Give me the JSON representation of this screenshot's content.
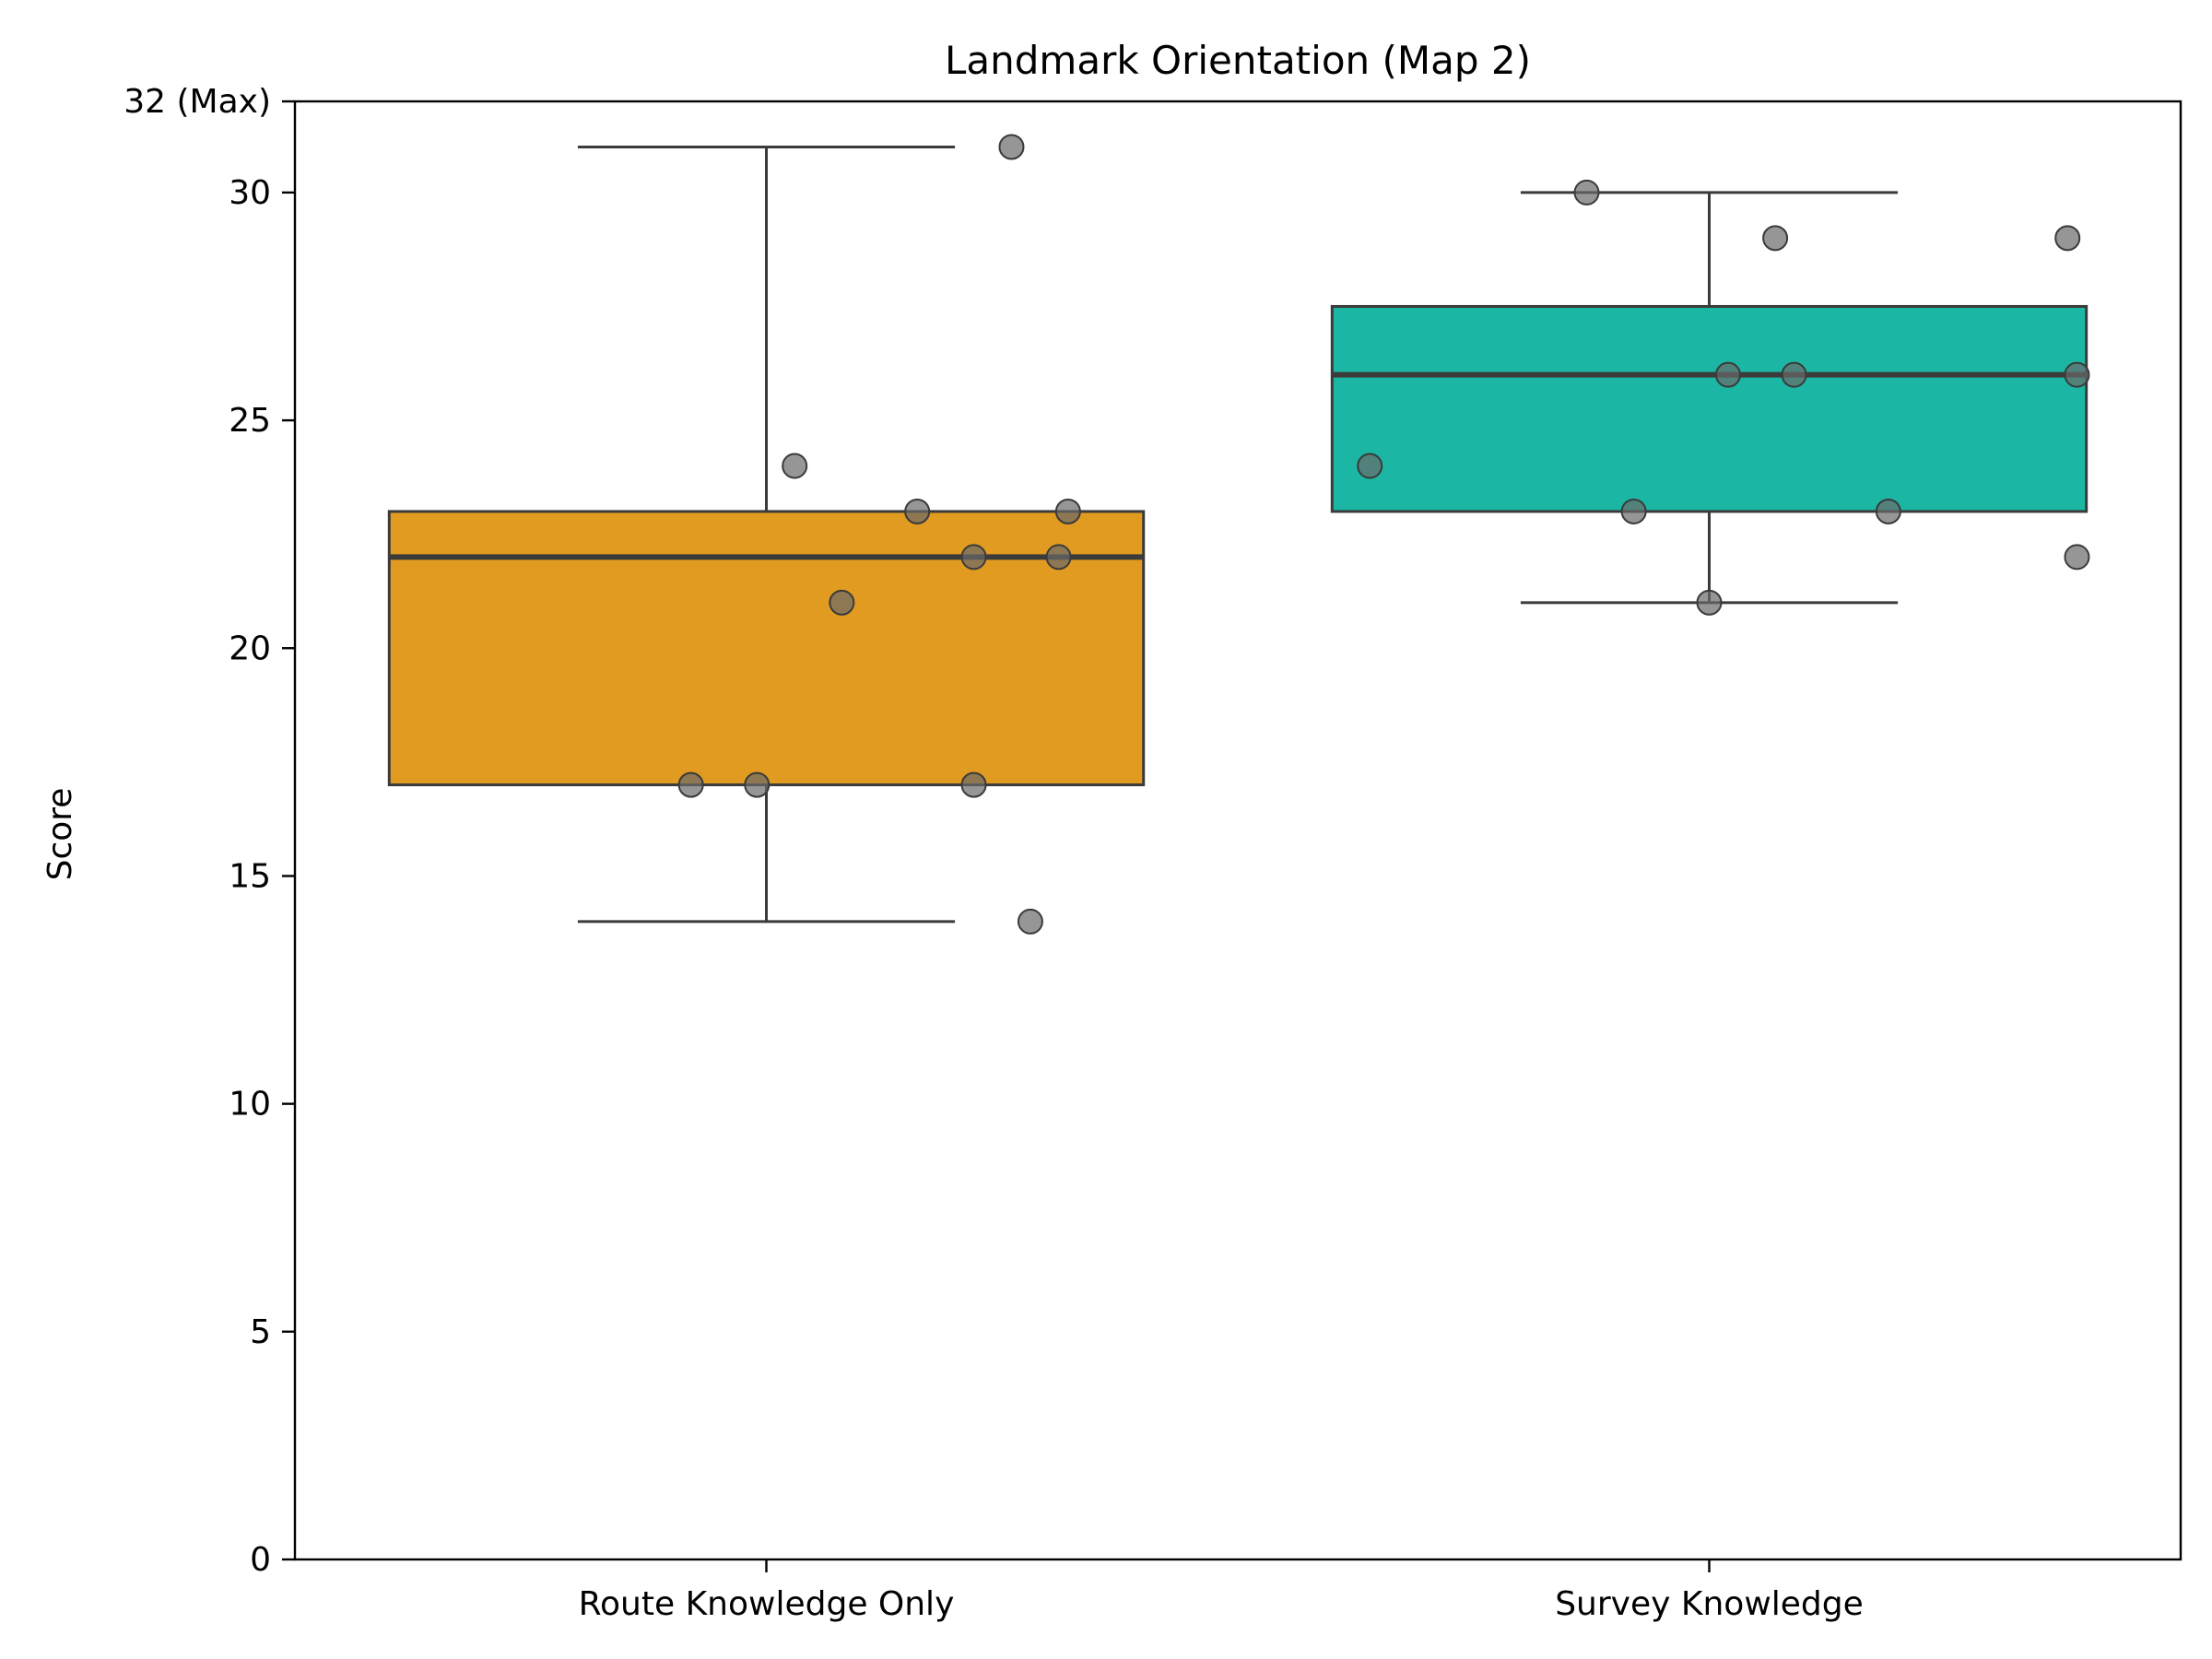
{
  "chart_data": {
    "type": "box",
    "title": "Landmark Orientation (Map 2)",
    "xlabel": "",
    "ylabel": "Score",
    "ylim": [
      0,
      32
    ],
    "yticks": [
      0,
      5,
      10,
      15,
      20,
      25,
      30,
      32
    ],
    "ytick_labels": [
      "0",
      "5",
      "10",
      "15",
      "20",
      "25",
      "30",
      "32 (Max)"
    ],
    "categories": [
      "Route Knowledge Only",
      "Survey Knowledge"
    ],
    "grid": false,
    "boxes": [
      {
        "category": "Route Knowledge Only",
        "color": "#E09B20",
        "whisker_low": 14,
        "q1": 17,
        "median": 22,
        "q3": 23,
        "whisker_high": 31,
        "points": [
          {
            "offset": 0.26,
            "y": 31
          },
          {
            "offset": 0.03,
            "y": 24
          },
          {
            "offset": 0.16,
            "y": 23
          },
          {
            "offset": 0.32,
            "y": 23
          },
          {
            "offset": 0.22,
            "y": 22
          },
          {
            "offset": 0.31,
            "y": 22
          },
          {
            "offset": 0.08,
            "y": 21
          },
          {
            "offset": -0.08,
            "y": 17
          },
          {
            "offset": -0.01,
            "y": 17
          },
          {
            "offset": 0.22,
            "y": 17
          },
          {
            "offset": 0.28,
            "y": 14
          }
        ]
      },
      {
        "category": "Survey Knowledge",
        "color": "#1CB7A4",
        "whisker_low": 21,
        "q1": 23,
        "median": 26,
        "q3": 27.5,
        "whisker_high": 30,
        "points": [
          {
            "offset": -0.13,
            "y": 30
          },
          {
            "offset": 0.07,
            "y": 29
          },
          {
            "offset": 0.38,
            "y": 29
          },
          {
            "offset": 0.02,
            "y": 26
          },
          {
            "offset": 0.09,
            "y": 26
          },
          {
            "offset": 0.39,
            "y": 26
          },
          {
            "offset": -0.36,
            "y": 24
          },
          {
            "offset": -0.08,
            "y": 23
          },
          {
            "offset": 0.19,
            "y": 23
          },
          {
            "offset": 0.39,
            "y": 22
          },
          {
            "offset": 0.0,
            "y": 21
          }
        ]
      }
    ]
  }
}
